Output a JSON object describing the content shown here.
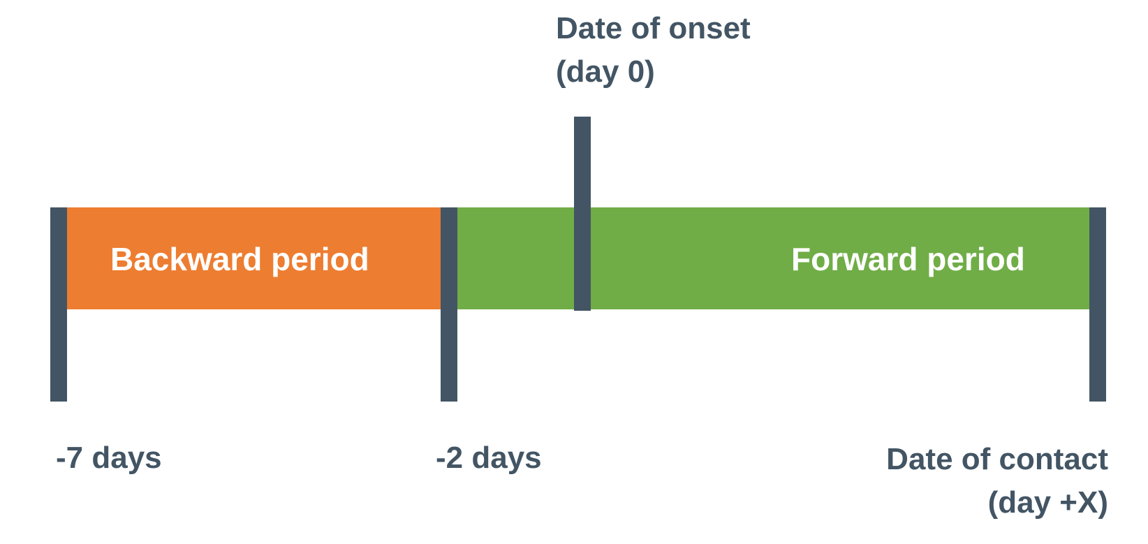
{
  "colors": {
    "backward_period": "#ED7D31",
    "forward_period": "#70AD47",
    "marker": "#435564",
    "text": "#435564",
    "band_text": "#FFFFFF"
  },
  "periods": {
    "backward": {
      "label": "Backward period"
    },
    "forward": {
      "label": "Forward period"
    }
  },
  "markers": {
    "onset": {
      "line1": "Date of onset",
      "line2": "(day 0)"
    },
    "start": {
      "label": "-7 days"
    },
    "split": {
      "label": "-2 days"
    },
    "contact": {
      "line1": "Date of contact",
      "line2": "(day +X)"
    }
  }
}
